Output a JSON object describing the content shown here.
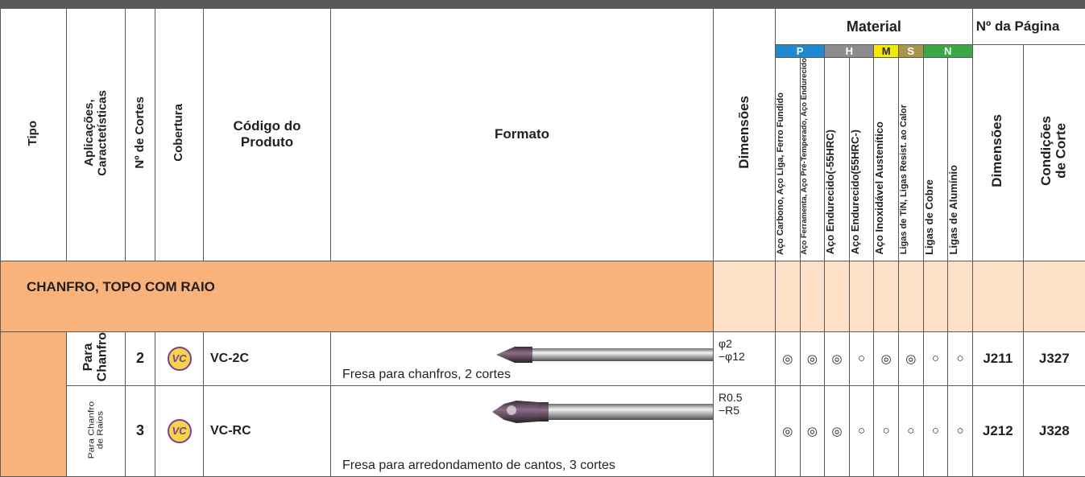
{
  "header": {
    "type": "Tipo",
    "applications": [
      "Aplicações,",
      "Caractetísticas"
    ],
    "flutes": "Nº de Cortes",
    "coating": "Cobertura",
    "product_code": [
      "Código do",
      "Produto"
    ],
    "shape": "Formato",
    "dimensions": "Dimensões",
    "material": "Material",
    "material_groups": [
      {
        "letter": "P",
        "columns": [
          "Aço Carbono, Aço Liga, Ferro Fundido",
          "Aço Ferramenta, Aço Pré-Temperado, Aço Endurecido"
        ]
      },
      {
        "letter": "H",
        "columns": [
          "Aço Endurecido(-55HRC)",
          "Aço Endurecido(55HRC-)"
        ]
      },
      {
        "letter": "M",
        "columns": [
          "Aço Inoxidável Austenítico"
        ]
      },
      {
        "letter": "S",
        "columns": [
          "Ligas de TiN, Ligas Resist. ao Calor"
        ]
      },
      {
        "letter": "N",
        "columns": [
          "Ligas de Cobre",
          "Ligas de Alumínio"
        ]
      }
    ],
    "page_no": "Nº da Página",
    "page_dimensions": "Dimensões",
    "page_conditions": [
      "Condições",
      "de Corte"
    ]
  },
  "section": "CHANFRO, TOPO COM RAIO",
  "rows": [
    {
      "application": [
        "Para",
        "Chanfro"
      ],
      "flutes": "2",
      "coating": "VC",
      "code": "VC-2C",
      "shape": "Fresa para chanfros, 2 cortes",
      "dimensions": [
        "φ2",
        "−φ12"
      ],
      "materials": [
        "◎",
        "◎",
        "◎",
        "○",
        "◎",
        "◎",
        "○",
        "○"
      ],
      "page_dimensions": "J211",
      "page_conditions": "J327"
    },
    {
      "application": [
        "Para Chanfro",
        "de Raios"
      ],
      "flutes": "3",
      "coating": "VC",
      "code": "VC-RC",
      "shape": "Fresa para arredondamento de cantos, 3 cortes",
      "dimensions": [
        "R0.5",
        "−R5"
      ],
      "materials": [
        "◎",
        "◎",
        "◎",
        "○",
        "○",
        "○",
        "○",
        "○"
      ],
      "page_dimensions": "J212",
      "page_conditions": "J328"
    }
  ]
}
